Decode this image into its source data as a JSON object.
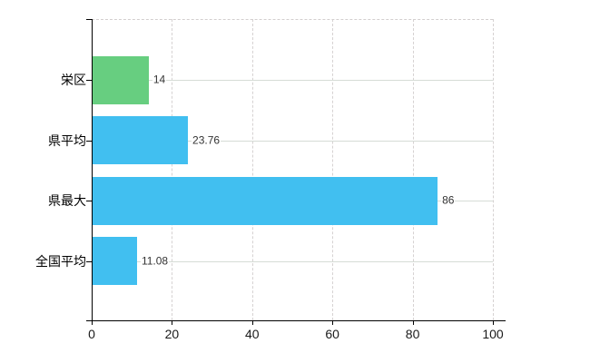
{
  "chart_data": {
    "type": "bar",
    "orientation": "horizontal",
    "title": "",
    "categories": [
      "栄区",
      "県平均",
      "県最大",
      "全国平均"
    ],
    "values": [
      14,
      23.76,
      86,
      11.08
    ],
    "value_labels": [
      "14",
      "23.76",
      "86",
      "11.08"
    ],
    "bar_colors": [
      "#67ce80",
      "#41bff0",
      "#41bff0",
      "#41bff0"
    ],
    "xlim": [
      0,
      100
    ],
    "x_ticks": [
      "0",
      "20",
      "40",
      "60",
      "80",
      "100"
    ],
    "x_tick_values": [
      0,
      20,
      40,
      60,
      80,
      100
    ],
    "grid": "on",
    "legend_position": "none",
    "colors": {
      "bar_blue": "#41bff0",
      "bar_green": "#67ce80",
      "axis": "#000000",
      "grid_vertical": "#d6d2d2",
      "grid_horizontal": "#d6dcd6",
      "category_text": "#000000",
      "value_text": "#333333",
      "tick_text": "#1a1a1a",
      "background": "#ffffff"
    }
  }
}
